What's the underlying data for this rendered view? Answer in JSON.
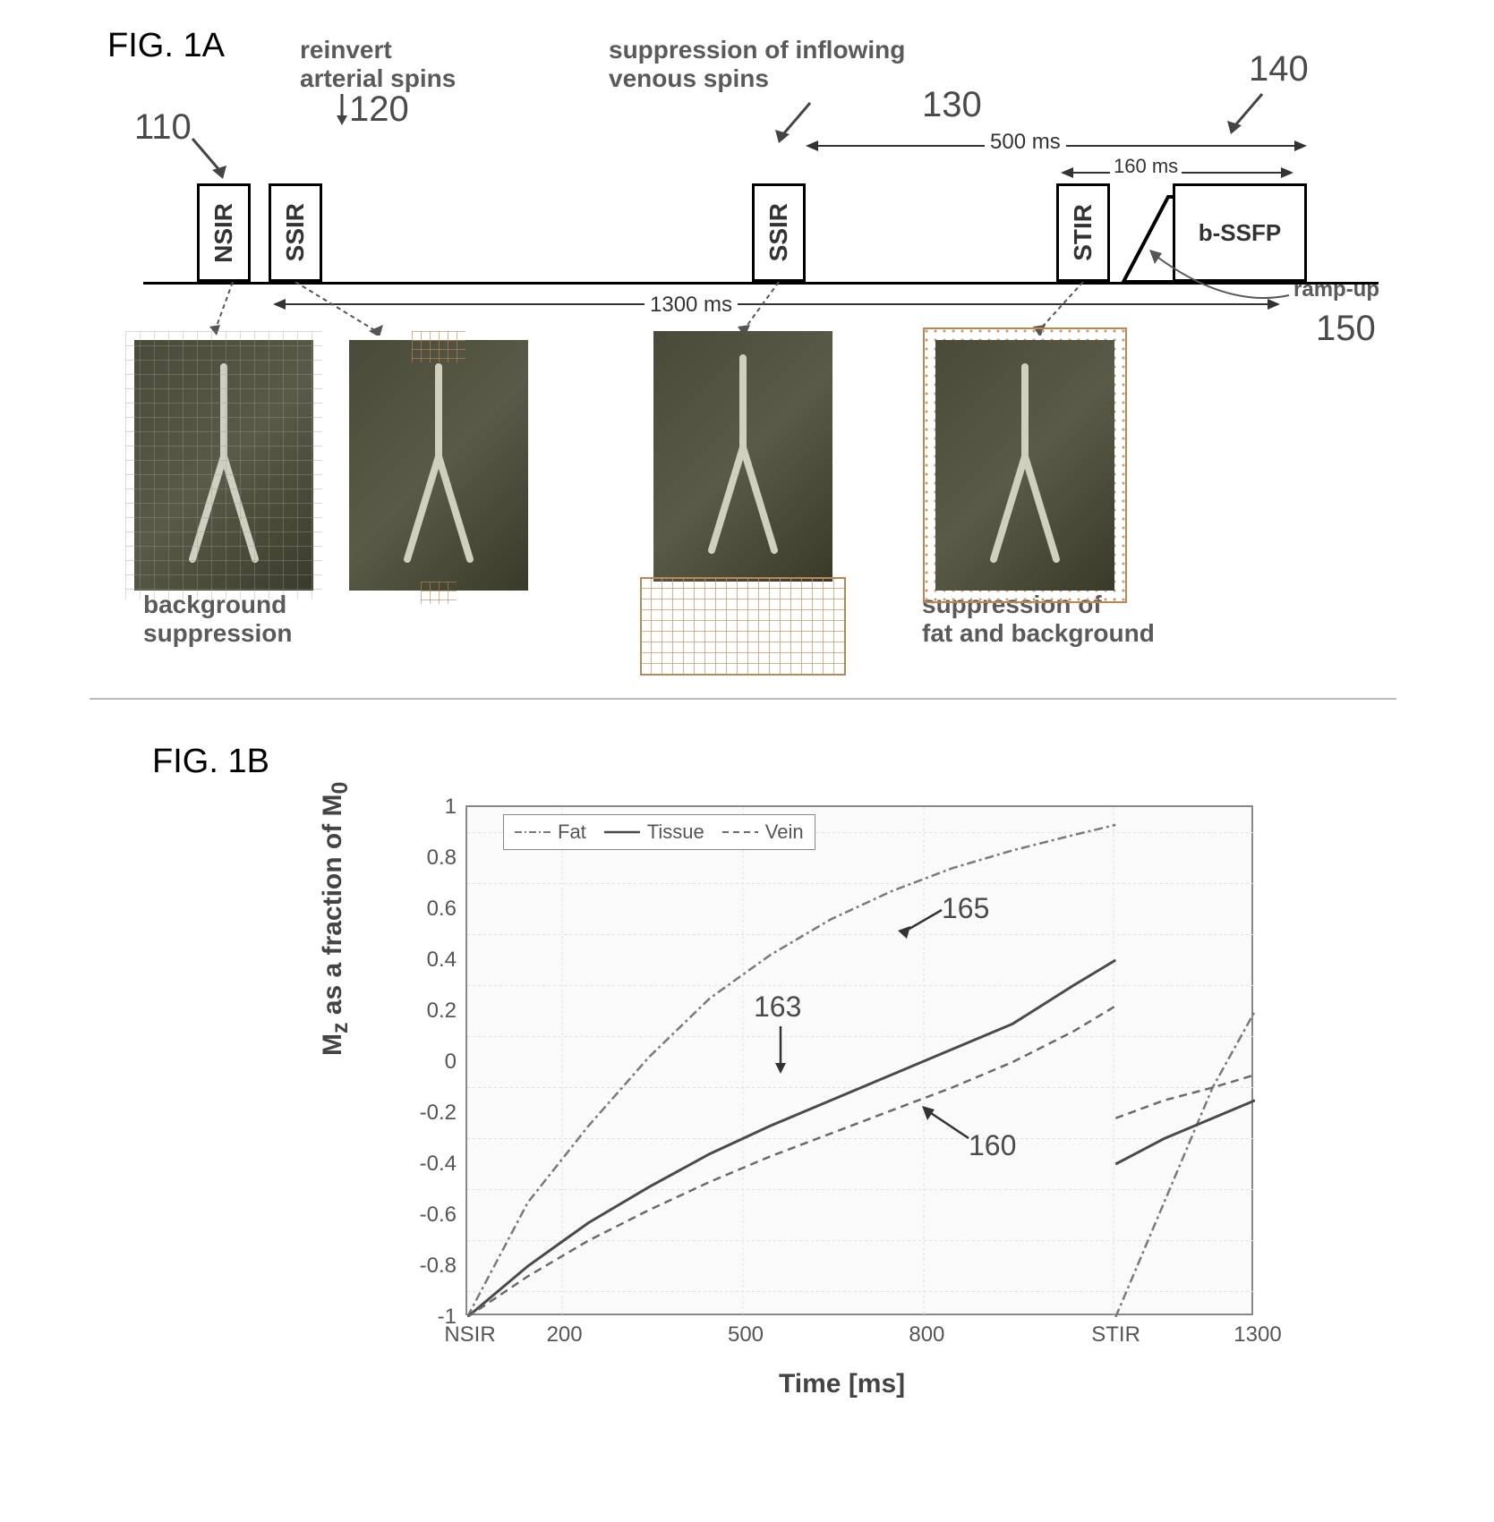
{
  "figure_labels": {
    "a": "FIG. 1A",
    "b": "FIG. 1B"
  },
  "panel_a": {
    "annotations": {
      "reinvert": "reinvert\narterial spins",
      "venous_supp": "suppression of inflowing\nvenous spins",
      "bg_supp": "background\nsuppression",
      "fat_supp": "suppression of\nfat and background",
      "rampup": "ramp-up"
    },
    "callouts": {
      "c110": "110",
      "c120": "120",
      "c130": "130",
      "c140": "140",
      "c150": "150"
    },
    "pulses": {
      "nsir": "NSIR",
      "ssir1": "SSIR",
      "ssir2": "SSIR",
      "stir": "STIR",
      "bssfp": "b-SSFP"
    },
    "times": {
      "total": "1300 ms",
      "ti2": "500 ms",
      "ti3": "160 ms"
    }
  },
  "panel_b": {
    "legend": {
      "fat": "Fat",
      "tissue": "Tissue",
      "vein": "Vein"
    },
    "callouts": {
      "c160": "160",
      "c163": "163",
      "c165": "165"
    },
    "ylabel": "Mz as a fraction of M0",
    "xlabel": "Time [ms]",
    "yticks": [
      "1",
      "0.8",
      "0.6",
      "0.4",
      "0.2",
      "0",
      "-0.2",
      "-0.4",
      "-0.6",
      "-0.8",
      "-1"
    ],
    "xticks": [
      "NSIR",
      "200",
      "500",
      "800",
      "STIR",
      "1300"
    ],
    "xtick_positions": [
      0,
      0.12,
      0.35,
      0.58,
      0.82,
      1.0
    ],
    "ylim": [
      -1,
      1
    ],
    "xlim": [
      0,
      1300
    ],
    "colors": {
      "fat": "#7a7a7a",
      "tissue": "#4a4a4a",
      "vein": "#6a6a6a",
      "grid": "#e0e0e0",
      "background": "#fafafa"
    },
    "line_styles": {
      "fat": "dash-dot",
      "tissue": "solid",
      "vein": "dash"
    },
    "fat_series": [
      [
        0,
        -1
      ],
      [
        100,
        -0.55
      ],
      [
        200,
        -0.25
      ],
      [
        300,
        0.02
      ],
      [
        400,
        0.25
      ],
      [
        500,
        0.42
      ],
      [
        600,
        0.56
      ],
      [
        700,
        0.67
      ],
      [
        800,
        0.76
      ],
      [
        900,
        0.83
      ],
      [
        1000,
        0.89
      ],
      [
        1070,
        0.93
      ],
      [
        1070,
        -1
      ],
      [
        1150,
        -0.55
      ],
      [
        1230,
        -0.1
      ],
      [
        1300,
        0.2
      ]
    ],
    "tissue_series": [
      [
        0,
        -1
      ],
      [
        100,
        -0.8
      ],
      [
        200,
        -0.63
      ],
      [
        300,
        -0.49
      ],
      [
        400,
        -0.36
      ],
      [
        500,
        -0.25
      ],
      [
        600,
        -0.15
      ],
      [
        700,
        -0.05
      ],
      [
        800,
        0.05
      ],
      [
        900,
        0.15
      ],
      [
        1000,
        0.3
      ],
      [
        1070,
        0.4
      ],
      [
        1070,
        -0.4
      ],
      [
        1150,
        -0.3
      ],
      [
        1230,
        -0.22
      ],
      [
        1300,
        -0.15
      ]
    ],
    "vein_series": [
      [
        0,
        -1
      ],
      [
        100,
        -0.84
      ],
      [
        200,
        -0.7
      ],
      [
        300,
        -0.58
      ],
      [
        400,
        -0.47
      ],
      [
        500,
        -0.37
      ],
      [
        600,
        -0.28
      ],
      [
        700,
        -0.19
      ],
      [
        800,
        -0.1
      ],
      [
        900,
        0.0
      ],
      [
        1000,
        0.12
      ],
      [
        1070,
        0.22
      ],
      [
        1070,
        -0.22
      ],
      [
        1150,
        -0.15
      ],
      [
        1230,
        -0.1
      ],
      [
        1300,
        -0.05
      ]
    ]
  }
}
